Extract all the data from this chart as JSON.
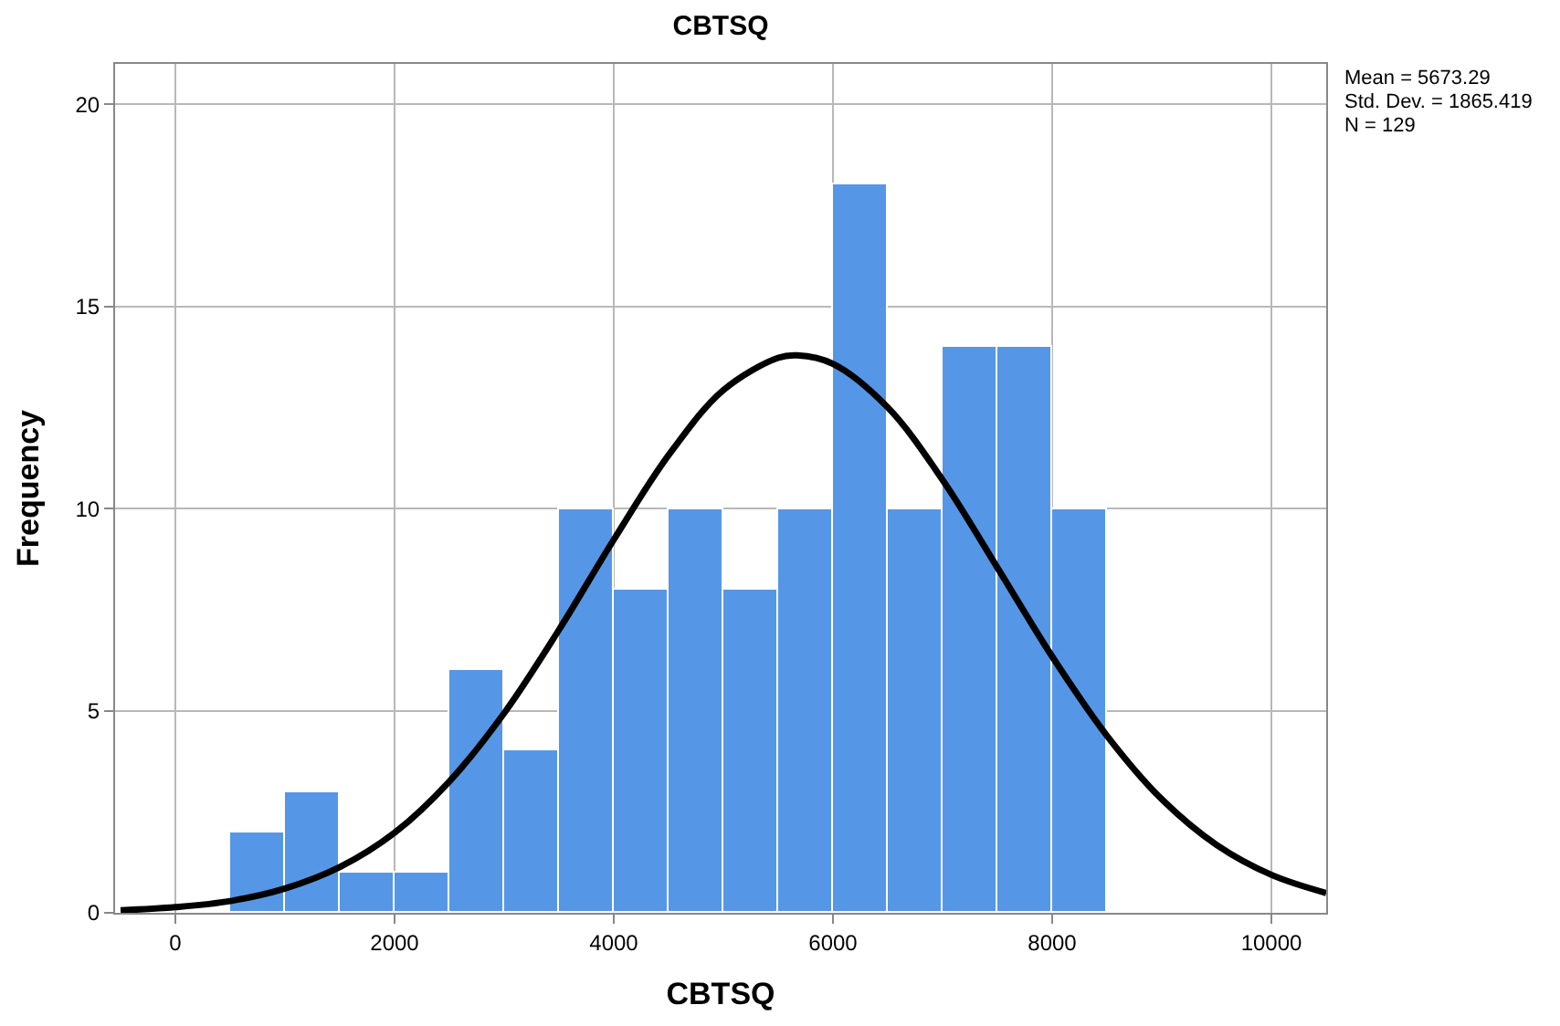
{
  "chart_data": {
    "type": "histogram",
    "title": "CBTSQ",
    "xlabel": "CBTSQ",
    "ylabel": "Frequency",
    "bins": [
      500,
      1000,
      1500,
      2000,
      2500,
      3000,
      3500,
      4000,
      4500,
      5000,
      5500,
      6000,
      6500,
      7000,
      7500,
      8000,
      8500
    ],
    "values": [
      2,
      3,
      1,
      1,
      6,
      4,
      10,
      8,
      10,
      8,
      10,
      18,
      10,
      14,
      14,
      10
    ],
    "color": "#5597e6",
    "series": [
      {
        "type": "line",
        "color": "#000000",
        "x": [
          -500,
          0,
          500,
          1000,
          1500,
          2000,
          2500,
          3000,
          3500,
          4000,
          4500,
          5000,
          5500,
          5673,
          6000,
          6500,
          7000,
          7500,
          8000,
          8500,
          9000,
          9500,
          10000,
          10500
        ],
        "values": [
          0.06,
          0.14,
          0.29,
          0.6,
          1.13,
          1.98,
          3.25,
          4.94,
          7.0,
          9.23,
          11.32,
          12.93,
          13.73,
          13.79,
          13.58,
          12.5,
          10.71,
          8.54,
          6.34,
          4.38,
          2.81,
          1.68,
          0.94,
          0.49
        ]
      }
    ],
    "xlim": [
      -550,
      10500
    ],
    "xticks": [
      0,
      2000,
      4000,
      6000,
      8000,
      10000
    ],
    "ylim": [
      0,
      21
    ],
    "yticks": [
      0,
      5,
      10,
      15,
      20
    ],
    "grid": true,
    "annotations": [
      "Mean = 5673.29",
      "Std. Dev. = 1865.419",
      "N = 129"
    ]
  }
}
